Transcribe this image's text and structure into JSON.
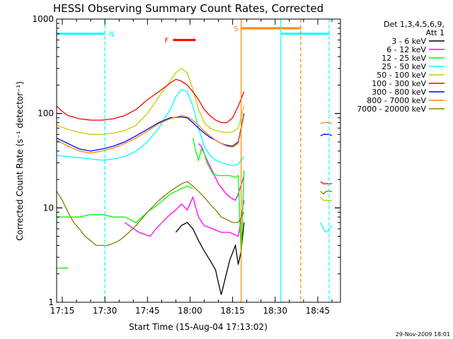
{
  "chart_data": {
    "type": "line",
    "title": "HESSI Observing Summary Count Rates, Corrected",
    "xlabel": "Start Time (15-Aug-04 17:13:02)",
    "ylabel": "Corrected Count Rate (s⁻¹ detector⁻¹)",
    "y_scale": "log",
    "ylim": [
      1,
      1000
    ],
    "xlim": [
      "17:13",
      "18:53"
    ],
    "yticks": [
      {
        "value": 1,
        "label": "1"
      },
      {
        "value": 10,
        "label": "10"
      },
      {
        "value": 100,
        "label": "100"
      },
      {
        "value": 1000,
        "label": "1000"
      }
    ],
    "xticks": [
      {
        "value": "17:15",
        "label": "17:15"
      },
      {
        "value": "17:30",
        "label": "17:30"
      },
      {
        "value": "17:45",
        "label": "17:45"
      },
      {
        "value": "18:00",
        "label": "18:00"
      },
      {
        "value": "18:15",
        "label": "18:15"
      },
      {
        "value": "18:30",
        "label": "18:30"
      },
      {
        "value": "18:45",
        "label": "18:45"
      }
    ],
    "grid": false,
    "legend": {
      "position": "right",
      "header": [
        "Det 1,3,4,5,6,9,",
        "Att 1"
      ]
    },
    "timestamp": "29-Nov-2009 18:01",
    "series": [
      {
        "name": "3 - 6 keV",
        "color": "#000000",
        "segments": [
          {
            "x": [
              "17:15",
              "17:17"
            ],
            "y": [
              2.3,
              2.3
            ]
          },
          {
            "x": [
              "17:55",
              "17:57",
              "17:59",
              "18:01",
              "18:03",
              "18:05",
              "18:07",
              "18:09",
              "18:10",
              "18:11",
              "18:12",
              "18:14",
              "18:16",
              "18:17",
              "18:18",
              "18:19"
            ],
            "y": [
              5.5,
              6.5,
              7.0,
              6.0,
              4.5,
              3.5,
              2.8,
              2.2,
              1.6,
              1.2,
              1.6,
              2.8,
              4.0,
              2.5,
              3.5,
              7.0
            ]
          }
        ]
      },
      {
        "name": "6 - 12 keV",
        "color": "#ff00ff",
        "segments": [
          {
            "x": [
              "17:37",
              "17:42",
              "17:46",
              "17:48",
              "17:52",
              "17:55",
              "17:57",
              "17:59",
              "18:01",
              "18:03",
              "18:05",
              "18:08",
              "18:11",
              "18:14",
              "18:17",
              "18:19"
            ],
            "y": [
              7.0,
              5.5,
              5.0,
              6.0,
              8.0,
              9.5,
              11,
              9.5,
              13,
              8.0,
              6.5,
              6.0,
              5.5,
              5.5,
              5.0,
              12
            ]
          },
          {
            "x": [
              "18:03",
              "18:04",
              "18:05",
              "18:06",
              "18:08",
              "18:10",
              "18:12",
              "18:14",
              "18:16",
              "18:17",
              "18:19"
            ],
            "y": [
              48,
              45,
              38,
              32,
              24,
              18,
              15,
              13,
              12,
              14,
              22
            ]
          }
        ]
      },
      {
        "name": "12 - 25 keV",
        "color": "#00ff00",
        "segments": [
          {
            "x": [
              "17:13",
              "17:15",
              "17:17"
            ],
            "y": [
              2.3,
              2.3,
              2.3
            ]
          },
          {
            "x": [
              "17:13",
              "17:17",
              "17:21",
              "17:25",
              "17:29",
              "17:33",
              "17:37",
              "17:41",
              "17:45",
              "17:49",
              "17:53",
              "17:57",
              "17:59",
              "18:01"
            ],
            "y": [
              8.0,
              8.0,
              8.0,
              8.5,
              8.5,
              8.0,
              8.0,
              7.0,
              9.0,
              11,
              14,
              16,
              17,
              16
            ]
          },
          {
            "x": [
              "18:01",
              "18:02",
              "18:03",
              "18:04",
              "18:05",
              "18:06",
              "18:08",
              "18:10",
              "18:12",
              "18:14",
              "18:16",
              "18:17",
              "18:18",
              "18:19"
            ],
            "y": [
              55,
              40,
              32,
              42,
              38,
              30,
              23,
              22,
              22,
              22,
              21,
              22,
              3.0,
              25
            ]
          }
        ]
      },
      {
        "name": "25 - 50 keV",
        "color": "#00ffff",
        "segments": [
          {
            "x": [
              "17:13",
              "17:17",
              "17:21",
              "17:25",
              "17:29",
              "17:33",
              "17:37",
              "17:41",
              "17:45",
              "17:49",
              "17:53",
              "17:55",
              "17:57",
              "17:59",
              "18:01",
              "18:03",
              "18:05",
              "18:07",
              "18:09",
              "18:11",
              "18:13",
              "18:15",
              "18:17",
              "18:19"
            ],
            "y": [
              36,
              35,
              34,
              33,
              32,
              33,
              35,
              40,
              50,
              70,
              110,
              150,
              180,
              170,
              120,
              70,
              45,
              36,
              32,
              30,
              29,
              28,
              29,
              35
            ]
          },
          {
            "x": [
              "18:46",
              "18:47",
              "18:48",
              "18:49",
              "18:50"
            ],
            "y": [
              7.0,
              6.0,
              5.5,
              6.0,
              6.5
            ]
          }
        ]
      },
      {
        "name": "50 - 100 keV",
        "color": "#cccc00",
        "segments": [
          {
            "x": [
              "17:13",
              "17:17",
              "17:21",
              "17:25",
              "17:29",
              "17:33",
              "17:37",
              "17:41",
              "17:45",
              "17:49",
              "17:53",
              "17:55",
              "17:57",
              "17:59",
              "18:01",
              "18:03",
              "18:05",
              "18:07",
              "18:09",
              "18:11",
              "18:13",
              "18:15",
              "18:17",
              "18:19"
            ],
            "y": [
              75,
              68,
              63,
              60,
              60,
              62,
              66,
              75,
              100,
              150,
              220,
              270,
              300,
              270,
              180,
              110,
              80,
              70,
              66,
              64,
              63,
              64,
              70,
              120
            ]
          },
          {
            "x": [
              "18:46",
              "18:47",
              "18:48",
              "18:49",
              "18:50"
            ],
            "y": [
              13,
              12,
              12,
              12,
              12
            ]
          }
        ]
      },
      {
        "name": "100 - 300 keV",
        "color": "#ff0000",
        "segments": [
          {
            "x": [
              "17:13",
              "17:15",
              "17:17",
              "17:21",
              "17:25",
              "17:29",
              "17:33",
              "17:37",
              "17:41",
              "17:45",
              "17:49",
              "17:53",
              "17:55",
              "17:57",
              "17:59",
              "18:01",
              "18:03",
              "18:05",
              "18:07",
              "18:09",
              "18:11",
              "18:13",
              "18:15",
              "18:17",
              "18:19"
            ],
            "y": [
              120,
              105,
              95,
              88,
              85,
              85,
              88,
              95,
              110,
              140,
              170,
              210,
              230,
              220,
              200,
              170,
              140,
              110,
              95,
              85,
              80,
              80,
              90,
              120,
              170
            ]
          },
          {
            "x": [
              "18:46",
              "18:47",
              "18:48",
              "18:49",
              "18:50"
            ],
            "y": [
              19,
              18,
              18,
              18,
              18
            ]
          }
        ]
      },
      {
        "name": "300 - 800 keV",
        "color": "#0000ff",
        "segments": [
          {
            "x": [
              "17:13",
              "17:17",
              "17:21",
              "17:25",
              "17:29",
              "17:33",
              "17:37",
              "17:41",
              "17:45",
              "17:49",
              "17:53",
              "17:57",
              "17:59",
              "18:01",
              "18:03",
              "18:05",
              "18:07",
              "18:09",
              "18:11",
              "18:13",
              "18:15",
              "18:17",
              "18:19"
            ],
            "y": [
              55,
              48,
              42,
              40,
              42,
              45,
              50,
              58,
              68,
              80,
              90,
              92,
              90,
              80,
              70,
              62,
              56,
              52,
              48,
              46,
              45,
              50,
              100
            ]
          },
          {
            "x": [
              "18:46",
              "18:47",
              "18:48",
              "18:49",
              "18:50"
            ],
            "y": [
              58,
              60,
              60,
              60,
              58
            ]
          }
        ]
      },
      {
        "name": "800 - 7000 keV",
        "color": "#ff8800",
        "segments": [
          {
            "x": [
              "17:13",
              "17:17",
              "17:21",
              "17:25",
              "17:29",
              "17:33",
              "17:37",
              "17:41",
              "17:45",
              "17:49",
              "17:53",
              "17:57",
              "17:59",
              "18:01",
              "18:03",
              "18:05",
              "18:07",
              "18:09",
              "18:11",
              "18:13",
              "18:15",
              "18:17",
              "18:19"
            ],
            "y": [
              52,
              45,
              40,
              38,
              40,
              43,
              48,
              55,
              65,
              78,
              88,
              95,
              92,
              85,
              75,
              65,
              58,
              52,
              48,
              45,
              44,
              48,
              95
            ]
          },
          {
            "x": [
              "18:46",
              "18:47",
              "18:48",
              "18:49",
              "18:50"
            ],
            "y": [
              78,
              80,
              80,
              80,
              78
            ]
          }
        ]
      },
      {
        "name": "7000 - 20000 keV",
        "color": "#808000",
        "segments": [
          {
            "x": [
              "17:13",
              "17:15",
              "17:17",
              "17:19",
              "17:21",
              "17:23",
              "17:25",
              "17:27",
              "17:29",
              "17:31",
              "17:33",
              "17:35",
              "17:37",
              "17:41",
              "17:45",
              "17:49",
              "17:53",
              "17:57",
              "17:59",
              "18:01",
              "18:03",
              "18:05",
              "18:07",
              "18:09",
              "18:11",
              "18:13",
              "18:15",
              "18:17",
              "18:19"
            ],
            "y": [
              15,
              12,
              9.0,
              7.0,
              6.0,
              5.0,
              4.5,
              4.0,
              4.0,
              4.0,
              4.2,
              4.5,
              5.0,
              6.5,
              9.0,
              12,
              15,
              18,
              19,
              17,
              15,
              13,
              11,
              9.5,
              8.0,
              7.5,
              7.0,
              7.0,
              9.0
            ]
          },
          {
            "x": [
              "18:46",
              "18:47",
              "18:48",
              "18:49",
              "18:50"
            ],
            "y": [
              15,
              14,
              15,
              15,
              15
            ]
          }
        ]
      }
    ],
    "vertical_lines": [
      {
        "x": "17:30",
        "color": "#00ffff",
        "style": "dashed"
      },
      {
        "x": "18:18",
        "color": "#ff8800",
        "style": "solid"
      },
      {
        "x": "18:32",
        "color": "#00ffff",
        "style": "solid"
      },
      {
        "x": "18:39",
        "color": "#ff8800",
        "style": "dashed"
      },
      {
        "x": "18:49",
        "color": "#00ffff",
        "style": "dashed"
      }
    ],
    "status_bars": [
      {
        "label": "N",
        "color": "#00ffff",
        "segments": [
          [
            "17:13",
            "17:30"
          ],
          [
            "18:32",
            "18:49"
          ]
        ],
        "y": 700
      },
      {
        "label": "S",
        "color": "#ff8800",
        "segments": [
          [
            "18:18",
            "18:39"
          ]
        ],
        "y": 800
      },
      {
        "label": "F",
        "color": "#ff0000",
        "segments": [
          [
            "17:54",
            "18:02"
          ]
        ],
        "y": 600
      }
    ]
  }
}
